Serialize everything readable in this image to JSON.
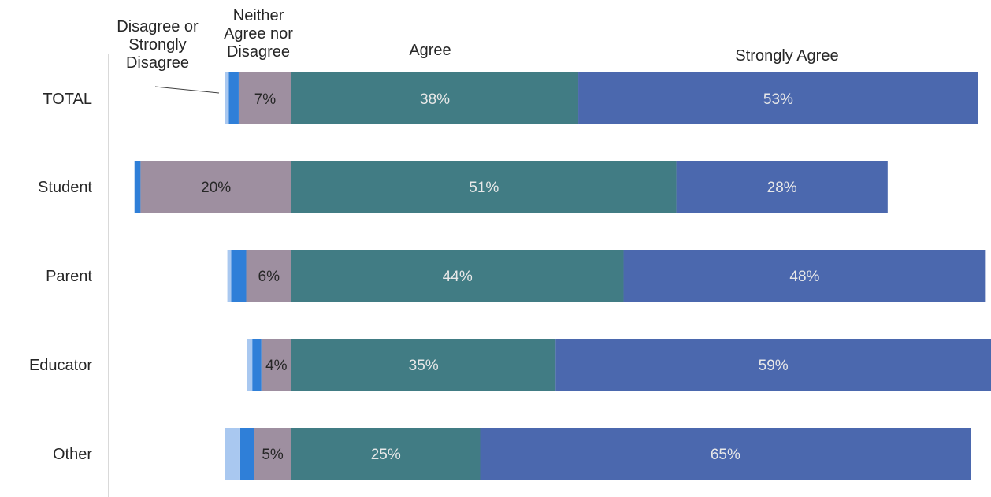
{
  "chart_data": {
    "type": "bar",
    "orientation": "horizontal",
    "stacked": "diverging",
    "title": "",
    "categories": [
      "TOTAL",
      "Student",
      "Parent",
      "Educator",
      "Other"
    ],
    "series": [
      {
        "name": "Disagree or Strongly Disagree",
        "color": "#a9c8f0",
        "values": [
          0.5,
          0,
          0.5,
          0.7,
          2
        ]
      },
      {
        "name": "Disagree or Strongly Disagree",
        "color": "#2f7fd8",
        "values": [
          1.3,
          0.8,
          2,
          1.2,
          1.8
        ]
      },
      {
        "name": "Neither Agree nor Disagree",
        "color": "#9e8fa0",
        "values": [
          7,
          20,
          6,
          4,
          5
        ]
      },
      {
        "name": "Agree",
        "color": "#417c84",
        "values": [
          38,
          51,
          44,
          35,
          25
        ]
      },
      {
        "name": "Strongly Agree",
        "color": "#4b68ae",
        "values": [
          53,
          28,
          48,
          59,
          65
        ]
      }
    ],
    "data_labels": {
      "TOTAL": [
        "",
        "",
        "7%",
        "38%",
        "53%"
      ],
      "Student": [
        "",
        "",
        "20%",
        "51%",
        "28%"
      ],
      "Parent": [
        "",
        "",
        "6%",
        "44%",
        "48%"
      ],
      "Educator": [
        "",
        "",
        "4%",
        "35%",
        "59%"
      ],
      "Other": [
        "",
        "",
        "5%",
        "25%",
        "65%"
      ]
    },
    "column_headers": [
      {
        "key": "disagree",
        "lines": [
          "Disagree or",
          "Strongly",
          "Disagree"
        ]
      },
      {
        "key": "neither",
        "lines": [
          "Neither",
          "Agree nor",
          "Disagree"
        ]
      },
      {
        "key": "agree",
        "lines": [
          "Agree"
        ]
      },
      {
        "key": "strongly_agree",
        "lines": [
          "Strongly Agree"
        ]
      }
    ],
    "xlabel": "",
    "ylabel": "",
    "legend": "none",
    "grid": false
  }
}
